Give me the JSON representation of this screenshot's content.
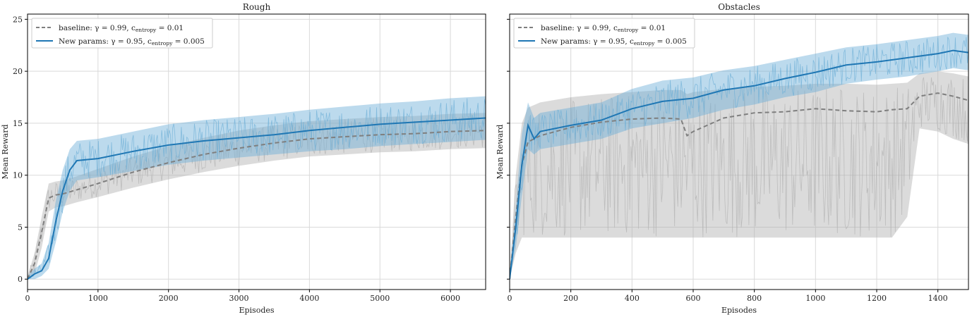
{
  "chart_data": [
    {
      "type": "line",
      "title": "Rough",
      "xlabel": "Episodes",
      "ylabel": "Mean Reward",
      "xlim": [
        0,
        6500
      ],
      "ylim": [
        -1,
        25.5
      ],
      "xticks": [
        0,
        1000,
        2000,
        3000,
        4000,
        5000,
        6000
      ],
      "yticks": [
        0,
        5,
        10,
        15,
        20,
        25
      ],
      "grid": true,
      "legend_position": "top-left",
      "series": [
        {
          "name": "baseline: γ = 0.99, c_entropy = 0.01",
          "legend_parts": [
            "baseline: ",
            "γ = 0.99, c",
            "entropy",
            " = 0.01"
          ],
          "color": "#7f7f7f",
          "band_color": "#b0b0b0",
          "style": "dashed",
          "x": [
            0,
            100,
            200,
            300,
            400,
            500,
            700,
            1000,
            1500,
            2000,
            2500,
            3000,
            3500,
            4000,
            4500,
            5000,
            5500,
            6000,
            6500
          ],
          "y": [
            0,
            1.5,
            4.5,
            7.8,
            8.1,
            8.2,
            8.6,
            9.2,
            10.3,
            11.2,
            12.0,
            12.6,
            13.1,
            13.5,
            13.7,
            13.9,
            14.0,
            14.2,
            14.3
          ],
          "band_lower": [
            0,
            0.5,
            3,
            6.5,
            6.9,
            7.0,
            7.4,
            7.9,
            8.8,
            9.6,
            10.3,
            10.9,
            11.4,
            11.8,
            12.0,
            12.2,
            12.3,
            12.5,
            12.6
          ],
          "band_upper": [
            0.3,
            2.5,
            6,
            9.2,
            9.4,
            9.5,
            9.9,
            10.6,
            11.8,
            12.8,
            13.6,
            14.3,
            14.8,
            15.2,
            15.4,
            15.6,
            15.7,
            15.9,
            16.0
          ]
        },
        {
          "name": "New params: γ = 0.95, c_entropy = 0.005",
          "legend_parts": [
            "New params: ",
            "γ = 0.95, c",
            "entropy",
            " = 0.005"
          ],
          "color": "#1f77b4",
          "band_color": "#6baed6",
          "style": "solid",
          "x": [
            0,
            100,
            200,
            300,
            400,
            500,
            600,
            700,
            1000,
            1500,
            2000,
            2500,
            3000,
            3500,
            4000,
            4500,
            5000,
            5500,
            6000,
            6500
          ],
          "y": [
            0,
            0.5,
            0.8,
            2.0,
            5.5,
            8.5,
            10.5,
            11.4,
            11.6,
            12.3,
            12.9,
            13.3,
            13.6,
            13.9,
            14.3,
            14.6,
            14.9,
            15.1,
            15.3,
            15.5
          ],
          "band_lower": [
            0,
            0,
            0.3,
            1.0,
            3.5,
            6.5,
            8.5,
            9.5,
            9.8,
            10.4,
            11.0,
            11.4,
            11.7,
            12.0,
            12.3,
            12.5,
            12.8,
            13.0,
            13.2,
            13.4
          ],
          "band_upper": [
            0.3,
            1.0,
            1.5,
            3.5,
            7.5,
            10.5,
            12.5,
            13.3,
            13.5,
            14.2,
            14.9,
            15.3,
            15.6,
            15.9,
            16.3,
            16.6,
            16.9,
            17.1,
            17.4,
            17.6
          ]
        }
      ]
    },
    {
      "type": "line",
      "title": "Obstacles",
      "xlabel": "Episodes",
      "ylabel": "Mean Reward",
      "xlim": [
        0,
        1500
      ],
      "ylim": [
        -1,
        25.5
      ],
      "xticks": [
        0,
        200,
        400,
        600,
        800,
        1000,
        1200,
        1400
      ],
      "yticks": [
        0,
        5,
        10,
        15,
        20,
        25
      ],
      "grid": true,
      "legend_position": "top-left",
      "series": [
        {
          "name": "baseline: γ = 0.99, c_entropy = 0.01",
          "legend_parts": [
            "baseline: ",
            "γ = 0.99, c",
            "entropy",
            " = 0.01"
          ],
          "color": "#7f7f7f",
          "band_color": "#b0b0b0",
          "style": "dashed",
          "x": [
            0,
            20,
            40,
            60,
            100,
            200,
            300,
            400,
            500,
            560,
            580,
            600,
            700,
            800,
            900,
            1000,
            1100,
            1200,
            1250,
            1300,
            1340,
            1400,
            1450,
            1500
          ],
          "y": [
            0,
            6,
            11,
            13.2,
            13.8,
            14.6,
            15.1,
            15.4,
            15.5,
            15.4,
            13.8,
            14.2,
            15.5,
            16.0,
            16.1,
            16.4,
            16.2,
            16.1,
            16.3,
            16.4,
            17.6,
            17.9,
            17.6,
            17.2
          ],
          "band_lower": [
            0,
            2.5,
            4,
            4,
            4,
            4,
            4,
            4,
            4,
            4,
            4,
            4,
            4,
            4,
            4,
            4,
            4,
            4,
            4,
            6,
            14.5,
            14.2,
            13.5,
            13.0
          ],
          "band_upper": [
            0.5,
            10,
            15,
            16.5,
            17,
            17.5,
            17.8,
            18,
            18.2,
            18.2,
            17.8,
            18,
            18.3,
            18.5,
            18.6,
            18.8,
            18.8,
            18.7,
            18.8,
            18.9,
            19.8,
            20,
            19.8,
            19.5
          ]
        },
        {
          "name": "New params: γ = 0.95, c_entropy = 0.005",
          "legend_parts": [
            "New params: ",
            "γ = 0.95, c",
            "entropy",
            " = 0.005"
          ],
          "color": "#1f77b4",
          "band_color": "#6baed6",
          "style": "solid",
          "x": [
            0,
            20,
            40,
            60,
            80,
            100,
            200,
            300,
            400,
            500,
            600,
            700,
            800,
            900,
            1000,
            1100,
            1200,
            1300,
            1400,
            1450,
            1500
          ],
          "y": [
            0,
            5,
            11,
            14.8,
            13.5,
            14.2,
            14.8,
            15.3,
            16.4,
            17.1,
            17.4,
            18.2,
            18.6,
            19.3,
            19.9,
            20.6,
            20.9,
            21.3,
            21.7,
            22.0,
            21.8
          ],
          "band_lower": [
            0,
            3,
            8,
            12.5,
            12,
            12.5,
            13,
            13.5,
            14.5,
            15,
            15.5,
            16.3,
            16.8,
            17.5,
            18,
            18.8,
            19.2,
            19.5,
            20,
            20.3,
            20.1
          ],
          "band_upper": [
            0.5,
            7,
            14,
            17,
            15.5,
            16,
            16.5,
            17,
            18.3,
            19.1,
            19.4,
            20.1,
            20.5,
            21.1,
            21.7,
            22.3,
            22.6,
            23,
            23.4,
            23.7,
            23.5
          ]
        }
      ]
    }
  ]
}
